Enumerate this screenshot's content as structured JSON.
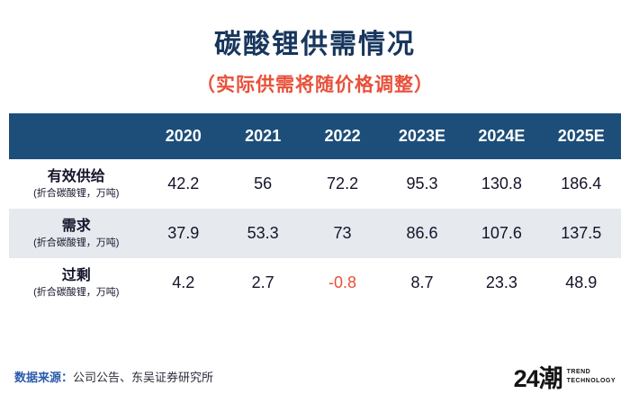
{
  "title": "碳酸锂供需情况",
  "subtitle": "（实际供需将随价格调整）",
  "chart_data": {
    "type": "table",
    "columns": [
      "",
      "2020",
      "2021",
      "2022",
      "2023E",
      "2024E",
      "2025E"
    ],
    "rows": [
      {
        "label": "有效供给",
        "sublabel": "(折合碳酸锂，万吨)",
        "values": [
          "42.2",
          "56",
          "72.2",
          "95.3",
          "130.8",
          "186.4"
        ]
      },
      {
        "label": "需求",
        "sublabel": "(折合碳酸锂，万吨)",
        "values": [
          "37.9",
          "53.3",
          "73",
          "86.6",
          "107.6",
          "137.5"
        ]
      },
      {
        "label": "过剩",
        "sublabel": "(折合碳酸锂，万吨)",
        "values": [
          "4.2",
          "2.7",
          "-0.8",
          "8.7",
          "23.3",
          "48.9"
        ]
      }
    ],
    "negative_values": [
      "-0.8"
    ],
    "layout": {
      "row_striping": true,
      "header_position": "top"
    }
  },
  "footer": {
    "source_label": "数据来源：",
    "source_text": "公司公告、东吴证券研究所"
  },
  "logo": {
    "brand": "24潮",
    "tagline_line1": "TREND",
    "tagline_line2": "TECHNOLOGY"
  },
  "colors": {
    "title": "#17365d",
    "subtitle": "#e8503a",
    "header_bg": "#1d4e79",
    "header_text": "#ffffff",
    "row_alt_bg": "#e6e9ee",
    "negative": "#e8503a",
    "source_label": "#2b5cab"
  }
}
